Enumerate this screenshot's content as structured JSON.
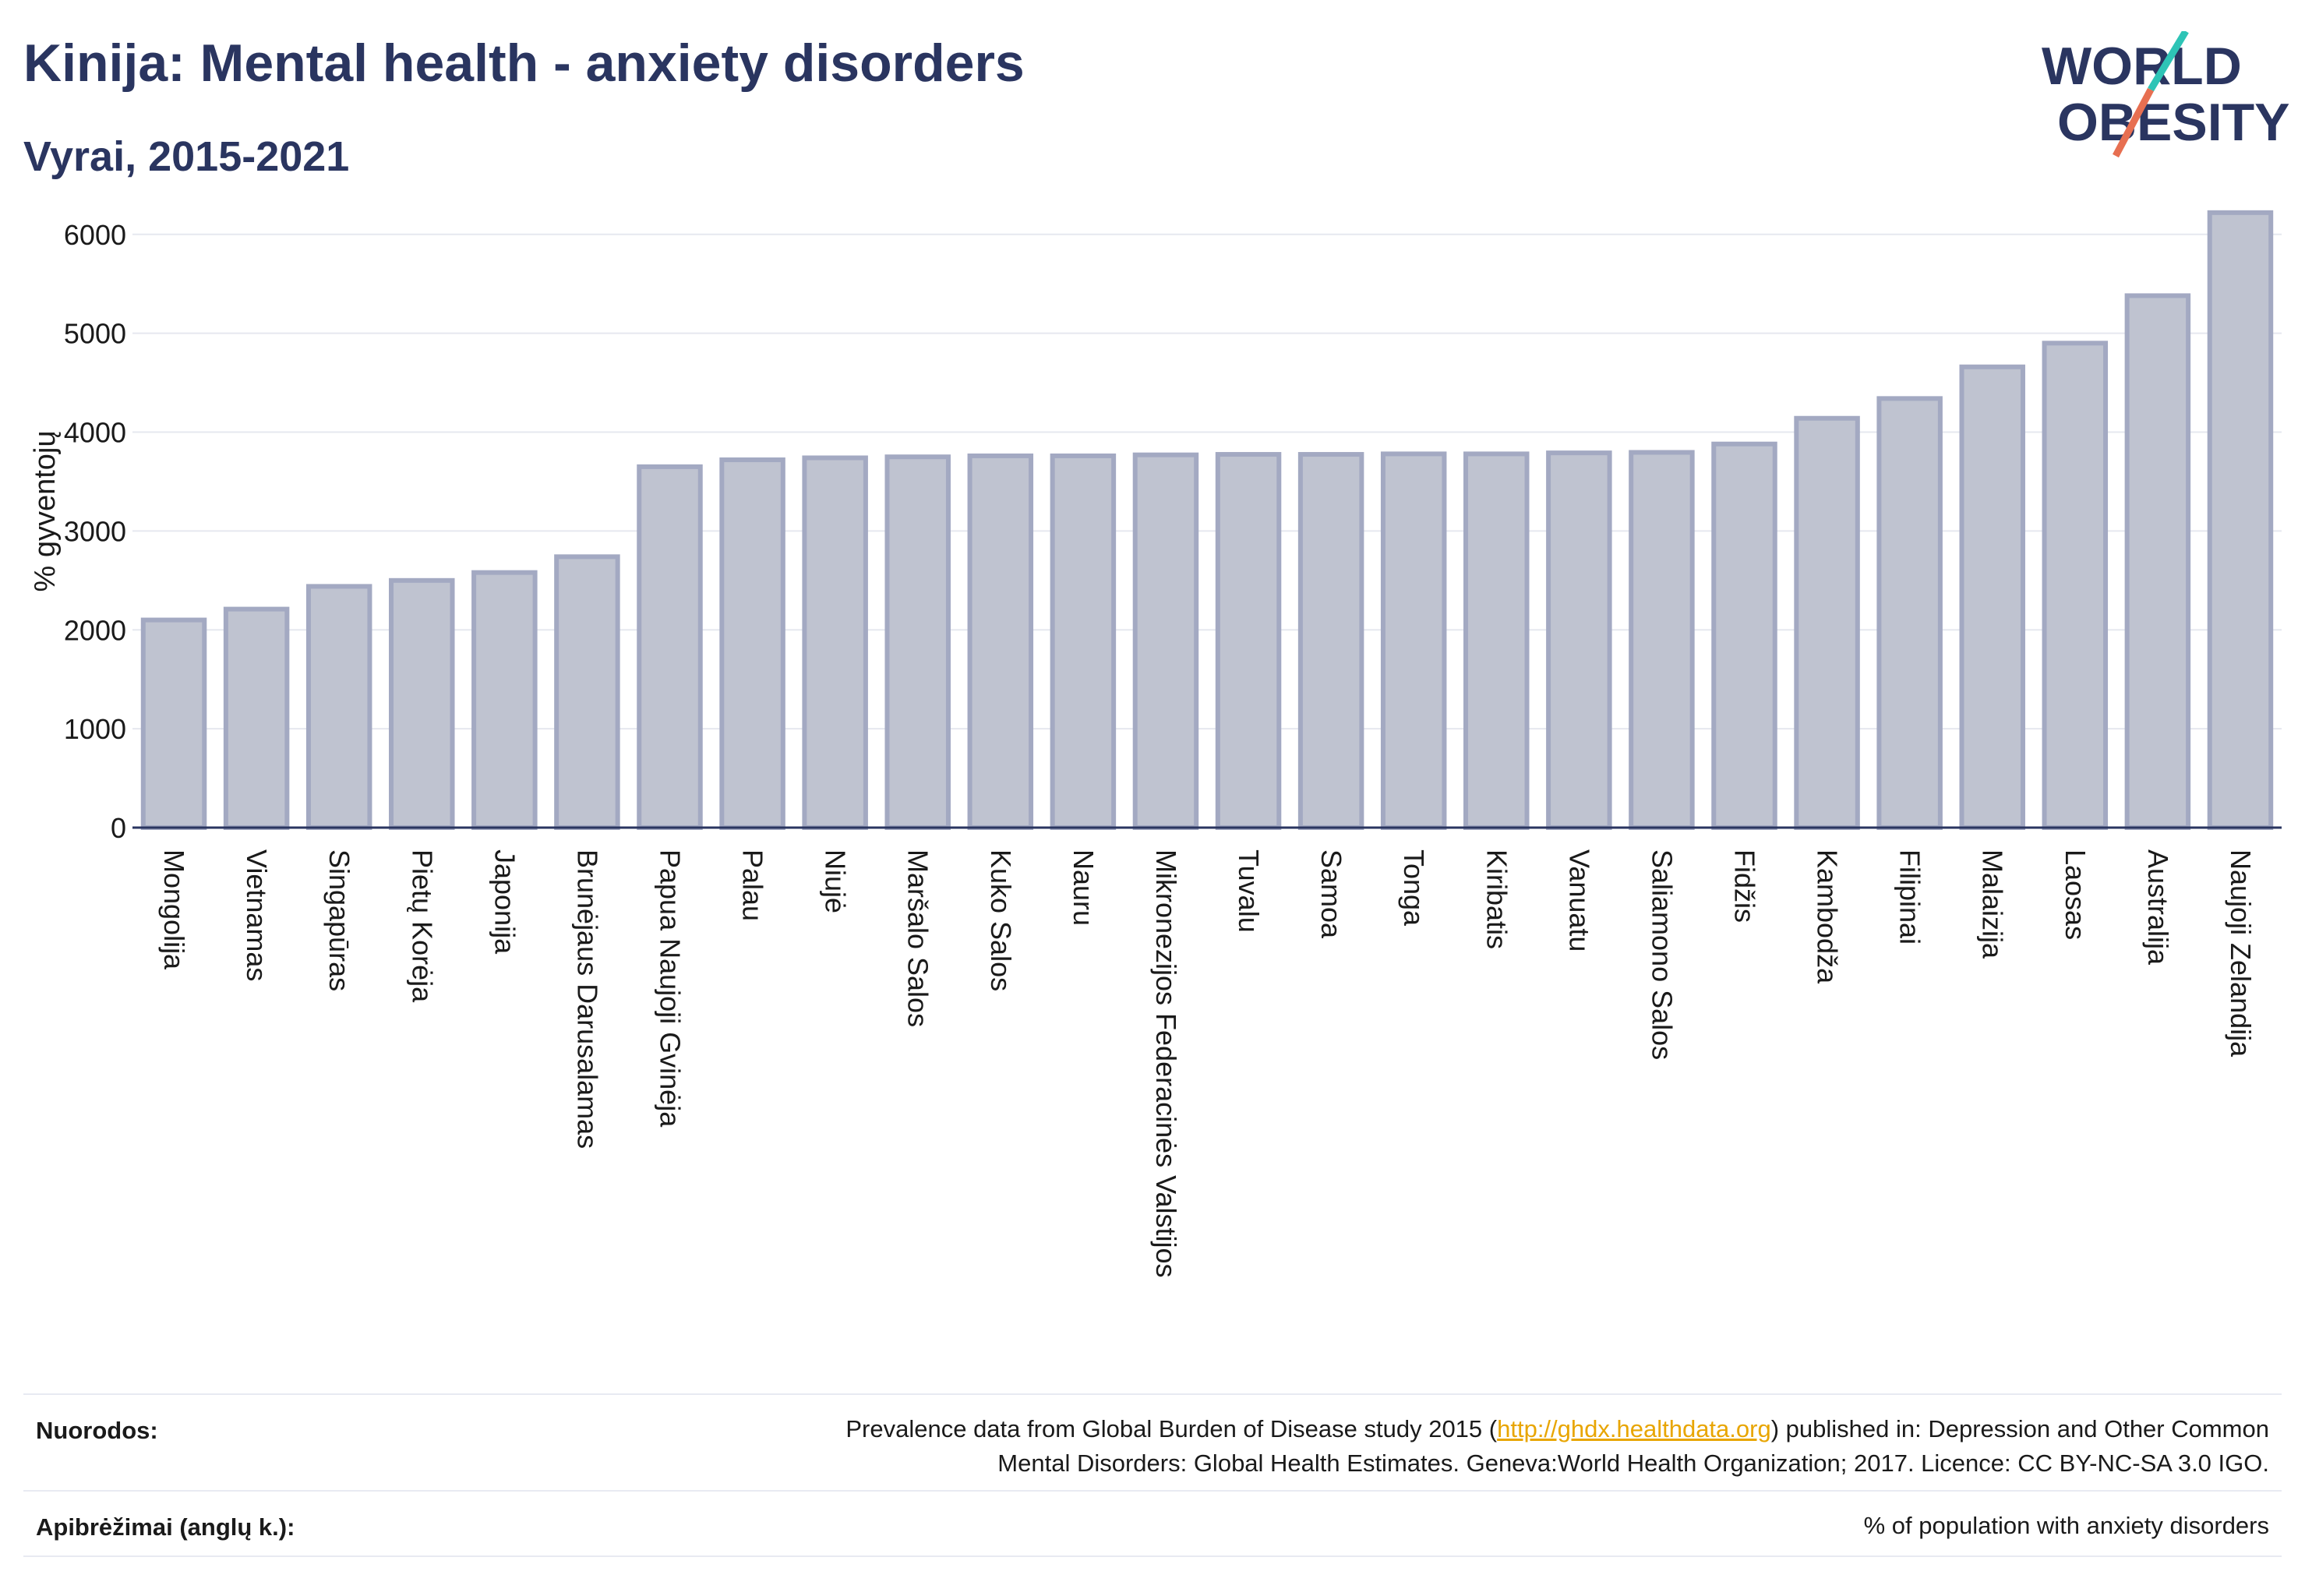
{
  "header": {
    "title": "Kinija: Mental health - anxiety disorders",
    "subtitle": "Vyrai, 2015-2021"
  },
  "logo": {
    "line1": "WORLD",
    "line2": "OBESITY",
    "slash_colors": [
      "#e76f51",
      "#2ec4b6"
    ]
  },
  "colors": {
    "bar_fill": "#bfc3d0",
    "bar_stroke": "#a3a9c2",
    "axis": "#2a3560",
    "grid": "#e6e8ef"
  },
  "chart_data": {
    "type": "bar",
    "ylabel": "% gyventojų",
    "xlabel": "",
    "ylim": [
      0,
      6400
    ],
    "yticks": [
      0,
      1000,
      2000,
      3000,
      4000,
      5000,
      6000
    ],
    "grid": true,
    "categories": [
      "Mongolija",
      "Vietnamas",
      "Singapūras",
      "Pietų Korėja",
      "Japonija",
      "Brunėjaus Darusalamas",
      "Papua Naujoji Gvinėja",
      "Palau",
      "Niujė",
      "Maršalo Salos",
      "Kuko Salos",
      "Nauru",
      "Mikronezijos Federacinės Valstijos",
      "Tuvalu",
      "Samoa",
      "Tonga",
      "Kiribatis",
      "Vanuatu",
      "Saliamono Salos",
      "Fidžis",
      "Kambodža",
      "Filipinai",
      "Malaizija",
      "Laosas",
      "Australija",
      "Naujoji Zelandija"
    ],
    "values": [
      2100,
      2210,
      2440,
      2500,
      2580,
      2740,
      3650,
      3720,
      3740,
      3750,
      3760,
      3760,
      3770,
      3775,
      3775,
      3780,
      3780,
      3790,
      3795,
      3880,
      4140,
      4340,
      4660,
      4900,
      5380,
      6220
    ]
  },
  "footer": {
    "references_label": "Nuorodos:",
    "references_text_1a": "Prevalence data from Global Burden of Disease study 2015 (",
    "references_link": "http://ghdx.healthdata.org",
    "references_text_1b": ") published in: Depression and Other Common",
    "references_text_2": "Mental Disorders: Global Health Estimates. Geneva:World Health Organization; 2017. Licence: CC BY-NC-SA 3.0 IGO.",
    "definitions_label": "Apibrėžimai (anglų k.):",
    "definitions_text": "% of population with anxiety disorders"
  }
}
